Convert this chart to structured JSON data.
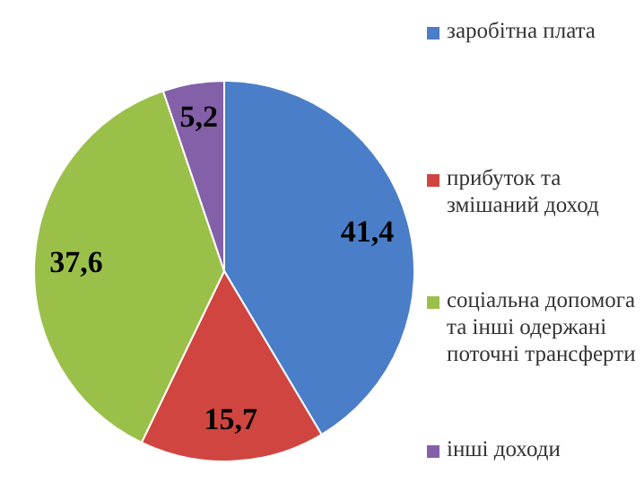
{
  "chart_data": {
    "type": "pie",
    "categories": [
      "заробітна плата",
      "прибуток та змішаний доход",
      "соціальна допомога та інші одержані поточні трансферти",
      "інші доходи"
    ],
    "values": [
      41.4,
      15.7,
      37.6,
      5.2
    ],
    "value_labels": [
      "41,4",
      "15,7",
      "37,6",
      "5,2"
    ],
    "colors": [
      "#4a7ec8",
      "#d04540",
      "#9bc04a",
      "#8460a8"
    ],
    "legend": "right"
  }
}
